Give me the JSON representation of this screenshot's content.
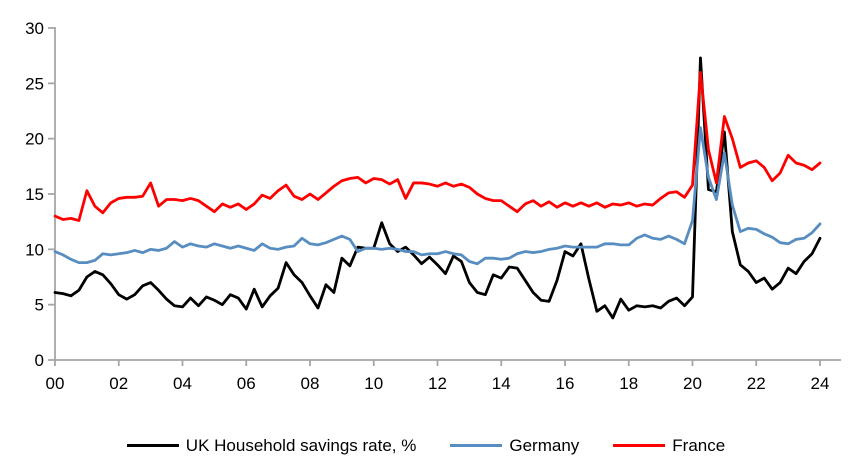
{
  "chart_data": {
    "type": "line",
    "title": "",
    "grid": "off",
    "legend_position": "bottom-center",
    "x_axis": {
      "start_year": 2000,
      "end_year": 2024,
      "frequency": "quarterly",
      "tick_labels": [
        "00",
        "02",
        "04",
        "06",
        "08",
        "10",
        "12",
        "14",
        "16",
        "18",
        "20",
        "22",
        "24"
      ]
    },
    "y_axis": {
      "min": 0,
      "max": 30,
      "tick_step": 5,
      "ticks": [
        0,
        5,
        10,
        15,
        20,
        25,
        30
      ]
    },
    "axis_color": "#a6a6a6",
    "series": [
      {
        "name": "UK Household savings rate, %",
        "color": "#000000",
        "values": [
          6.1,
          6.0,
          5.8,
          6.3,
          7.5,
          8.0,
          7.7,
          6.9,
          5.9,
          5.5,
          5.9,
          6.7,
          7.0,
          6.3,
          5.5,
          4.9,
          4.8,
          5.6,
          4.9,
          5.7,
          5.4,
          5.0,
          5.9,
          5.6,
          4.6,
          6.4,
          4.8,
          5.8,
          6.5,
          8.8,
          7.7,
          7.0,
          5.8,
          4.7,
          6.8,
          6.1,
          9.2,
          8.5,
          10.2,
          10.1,
          10.1,
          12.4,
          10.5,
          9.8,
          10.2,
          9.5,
          8.7,
          9.3,
          8.6,
          7.8,
          9.4,
          8.9,
          7.0,
          6.1,
          5.9,
          7.7,
          7.4,
          8.4,
          8.3,
          7.2,
          6.1,
          5.4,
          5.3,
          7.2,
          9.8,
          9.4,
          10.5,
          7.3,
          4.4,
          4.9,
          3.8,
          5.5,
          4.5,
          4.9,
          4.8,
          4.9,
          4.7,
          5.3,
          5.6,
          4.9,
          5.7,
          27.3,
          15.4,
          15.2,
          20.6,
          11.6,
          8.6,
          8.0,
          7.0,
          7.4,
          6.4,
          7.0,
          8.3,
          7.8,
          8.9,
          9.6,
          11.0
        ]
      },
      {
        "name": "Germany",
        "color": "#578dc0",
        "values": [
          9.8,
          9.5,
          9.1,
          8.8,
          8.8,
          9.0,
          9.6,
          9.5,
          9.6,
          9.7,
          9.9,
          9.7,
          10.0,
          9.9,
          10.1,
          10.7,
          10.2,
          10.5,
          10.3,
          10.2,
          10.5,
          10.3,
          10.1,
          10.3,
          10.1,
          9.9,
          10.5,
          10.1,
          10.0,
          10.2,
          10.3,
          11.0,
          10.5,
          10.4,
          10.6,
          10.9,
          11.2,
          10.9,
          9.8,
          10.1,
          10.1,
          10.0,
          10.1,
          10.0,
          9.8,
          9.8,
          9.5,
          9.6,
          9.6,
          9.8,
          9.6,
          9.5,
          8.9,
          8.7,
          9.2,
          9.2,
          9.1,
          9.2,
          9.6,
          9.8,
          9.7,
          9.8,
          10.0,
          10.1,
          10.3,
          10.2,
          10.2,
          10.2,
          10.2,
          10.5,
          10.5,
          10.4,
          10.4,
          11.0,
          11.3,
          11.0,
          10.9,
          11.2,
          10.9,
          10.5,
          12.6,
          21.0,
          16.5,
          14.5,
          18.7,
          14.0,
          11.6,
          11.9,
          11.8,
          11.4,
          11.1,
          10.6,
          10.5,
          10.9,
          11.0,
          11.5,
          12.3
        ]
      },
      {
        "name": "France",
        "color": "#ff0000",
        "values": [
          13.0,
          12.7,
          12.8,
          12.6,
          15.3,
          13.9,
          13.3,
          14.2,
          14.6,
          14.7,
          14.7,
          14.8,
          16.0,
          13.9,
          14.5,
          14.5,
          14.4,
          14.6,
          14.4,
          13.9,
          13.4,
          14.1,
          13.8,
          14.1,
          13.6,
          14.1,
          14.9,
          14.6,
          15.3,
          15.8,
          14.8,
          14.5,
          15.0,
          14.5,
          15.1,
          15.7,
          16.2,
          16.4,
          16.5,
          16.0,
          16.4,
          16.3,
          15.9,
          16.3,
          14.6,
          16.0,
          16.0,
          15.9,
          15.7,
          16.0,
          15.7,
          15.9,
          15.6,
          15.0,
          14.6,
          14.4,
          14.4,
          13.9,
          13.4,
          14.1,
          14.4,
          13.9,
          14.3,
          13.8,
          14.2,
          13.9,
          14.2,
          13.9,
          14.2,
          13.8,
          14.1,
          14.0,
          14.2,
          13.9,
          14.1,
          14.0,
          14.6,
          15.1,
          15.2,
          14.7,
          15.8,
          26.0,
          19.0,
          16.0,
          22.0,
          20.0,
          17.4,
          17.8,
          18.0,
          17.4,
          16.2,
          16.9,
          18.5,
          17.8,
          17.6,
          17.2,
          17.8
        ]
      }
    ]
  },
  "legend": {
    "items": [
      {
        "label": "UK Household savings rate, %"
      },
      {
        "label": "Germany"
      },
      {
        "label": "France"
      }
    ]
  }
}
